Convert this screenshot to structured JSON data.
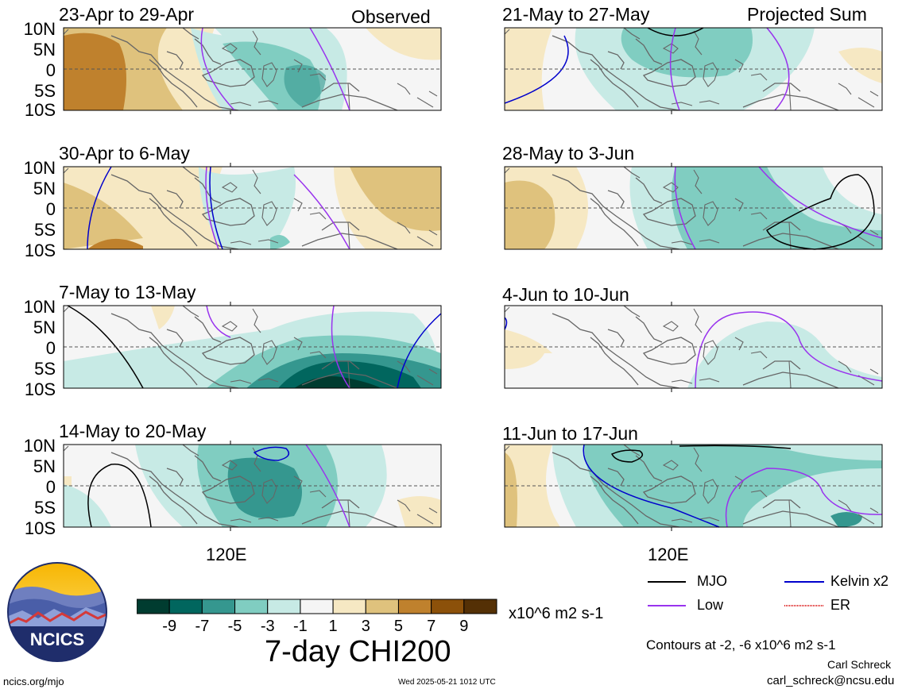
{
  "panels": [
    {
      "date": "23-Apr to 29-Apr",
      "tag": "Observed"
    },
    {
      "date": "30-Apr to 6-May",
      "tag": ""
    },
    {
      "date": "7-May to 13-May",
      "tag": ""
    },
    {
      "date": "14-May to 20-May",
      "tag": ""
    },
    {
      "date": "21-May to 27-May",
      "tag": "Projected Sum"
    },
    {
      "date": "28-May to 3-Jun",
      "tag": ""
    },
    {
      "date": "4-Jun to 10-Jun",
      "tag": ""
    },
    {
      "date": "11-Jun to 17-Jun",
      "tag": ""
    }
  ],
  "lat_labels": [
    "10N",
    "5N",
    "0",
    "5S",
    "10S"
  ],
  "lon_label": "120E",
  "legend": {
    "mjo": "MJO",
    "kelvin": "Kelvin x2",
    "low": "Low",
    "er": "ER",
    "contours_note": "Contours at -2, -6 x10^6 m2 s-1",
    "line_colors": {
      "mjo": "#000000",
      "kelvin": "#0000cc",
      "low": "#9933ee",
      "er": "#dd2222"
    }
  },
  "colorbar": {
    "labels": [
      "-9",
      "-7",
      "-5",
      "-3",
      "-1",
      "1",
      "3",
      "5",
      "7",
      "9"
    ],
    "colors": [
      "#003c30",
      "#01665e",
      "#35978f",
      "#80cdc1",
      "#c7eae5",
      "#f5f5f5",
      "#f6e8c3",
      "#dfc27d",
      "#bf812d",
      "#8c510a",
      "#543005"
    ],
    "units": "x10^6 m2 s-1",
    "title": "7-day CHI200"
  },
  "logo": {
    "text": "NCICS"
  },
  "footer": {
    "site": "ncics.org/mjo",
    "timestamp": "Wed 2025-05-21 1012 UTC",
    "author": "Carl Schreck",
    "email": "carl_schreck@ncsu.edu"
  }
}
